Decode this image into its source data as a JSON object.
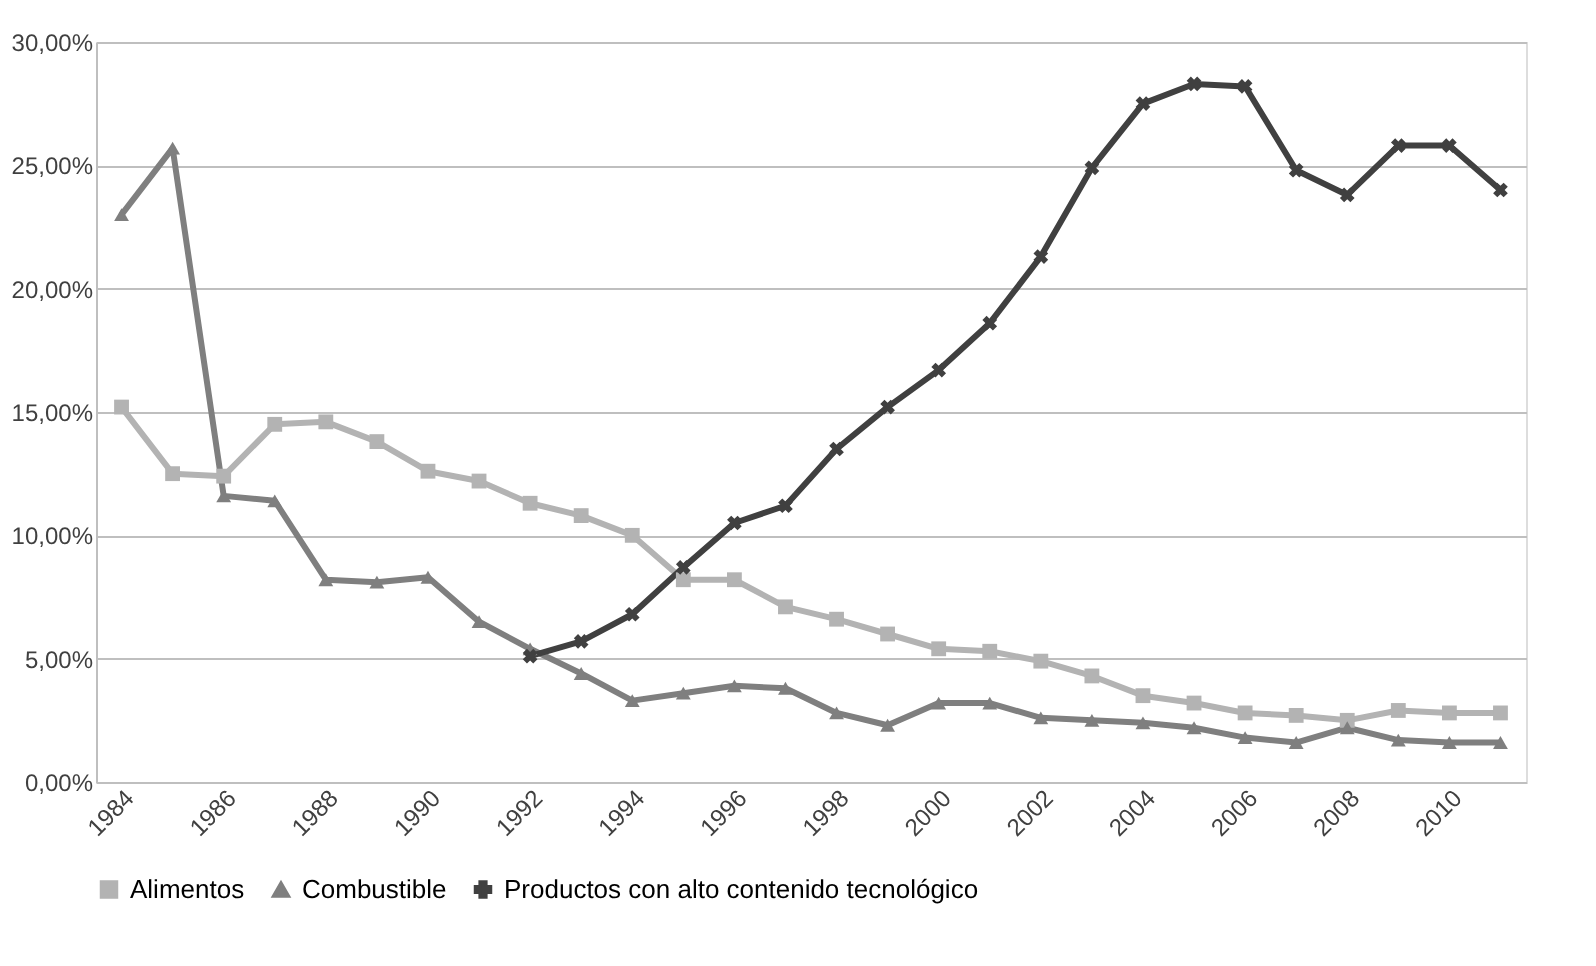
{
  "chart_data": {
    "type": "line",
    "categories": [
      "1984",
      null,
      "1986",
      null,
      "1988",
      null,
      "1990",
      null,
      "1992",
      null,
      "1994",
      null,
      "1996",
      null,
      "1998",
      null,
      "2000",
      null,
      "2002",
      null,
      "2004",
      null,
      "2006",
      null,
      "2008",
      null,
      "2010",
      null
    ],
    "series": [
      {
        "name": "Alimentos",
        "color": "#b3b3b3",
        "marker": "square",
        "values": [
          15.2,
          12.5,
          12.4,
          14.5,
          14.6,
          13.8,
          12.6,
          12.2,
          11.3,
          10.8,
          10.0,
          8.2,
          8.2,
          7.1,
          6.6,
          6.0,
          5.4,
          5.3,
          4.9,
          4.3,
          3.5,
          3.2,
          2.8,
          2.7,
          2.5,
          2.9,
          2.8,
          2.8
        ]
      },
      {
        "name": "Combustible",
        "color": "#7f7f7f",
        "marker": "triangle",
        "values": [
          23.0,
          25.7,
          11.6,
          11.4,
          8.2,
          8.1,
          8.3,
          6.5,
          5.4,
          4.4,
          3.3,
          3.6,
          3.9,
          3.8,
          2.8,
          2.3,
          3.2,
          3.2,
          2.6,
          2.5,
          2.4,
          2.2,
          1.8,
          1.6,
          2.2,
          1.7,
          1.6,
          1.6
        ]
      },
      {
        "name": "Productos con alto contenido tecnológico",
        "color": "#404040",
        "marker": "cross",
        "values": [
          null,
          null,
          null,
          null,
          null,
          null,
          null,
          null,
          5.1,
          5.7,
          6.8,
          8.7,
          10.5,
          11.2,
          13.5,
          15.2,
          16.7,
          18.6,
          21.3,
          24.9,
          27.5,
          28.3,
          28.2,
          24.8,
          23.8,
          25.8,
          25.8,
          24.0
        ]
      }
    ],
    "ylim": [
      0,
      30
    ],
    "yticks": [
      {
        "value": 0,
        "label": "0,00%"
      },
      {
        "value": 5,
        "label": "5,00%"
      },
      {
        "value": 10,
        "label": "10,00%"
      },
      {
        "value": 15,
        "label": "15,00%"
      },
      {
        "value": 20,
        "label": "20,00%"
      },
      {
        "value": 25,
        "label": "25,00%"
      },
      {
        "value": 30,
        "label": "30,00%"
      }
    ],
    "grid": "y",
    "legend": "bottom",
    "line_style": "solid"
  }
}
